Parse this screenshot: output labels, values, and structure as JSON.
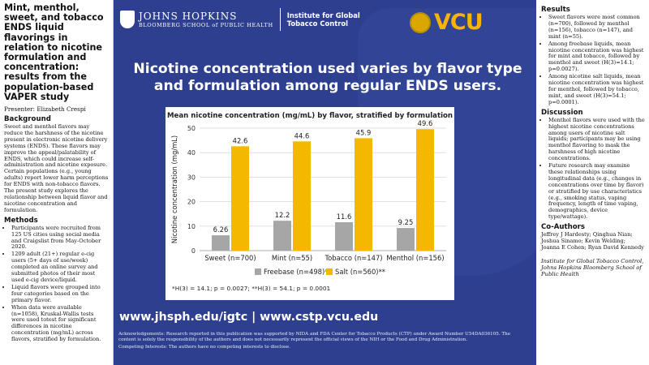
{
  "left": {
    "title": "Mint, menthol, sweet, and tobacco ENDS liquid flavorings in relation to nicotine formulation and concentration: results from the population-based VAPER study",
    "presenter": "Presenter: Elizabeth Crespi",
    "background_heading": "Background",
    "background_text": "Sweet and menthol flavors may reduce the harshness of the nicotine present in electronic nicotine delivery systems (ENDS). These flavors may improve the appeal/palatability of ENDS, which could increase self-administration and nicotine exposure. Certain populations (e.g., young adults) report lower harm perceptions for ENDS with non-tobacco flavors. The present study explores the relationship between liquid flavor and nicotine concentration and formulation.",
    "methods_heading": "Methods",
    "methods_items": [
      "Participants were recruited from 125 US cities using social media and Craigslist from May-October 2020.",
      "1209 adult (21+) regular e-cig users (5+ days of use/week) completed an online survey and submitted photos of their most used e-cig device/liquid.",
      "Liquid flavors were grouped into four categories based on the primary flavor.",
      "When data were available (n=1058), Kruskal-Wallis tests were used totest for significant differences in nicotine concentration (mg/mL) across flavors, stratified by formulation."
    ]
  },
  "header": {
    "jh_name": "JOHNS HOPKINS",
    "jh_sub": "BLOOMBERG SCHOOL of PUBLIC HEALTH",
    "institute_line1": "Institute for Global",
    "institute_line2": "Tobacco Control",
    "vcu": "VCU"
  },
  "headline": "Nicotine concentration used varies by flavor type and formulation among regular ENDS users.",
  "chart_data": {
    "type": "bar",
    "title": "Mean nicotine concentration (mg/mL) by flavor, stratified by formulation",
    "categories": [
      "Sweet (n=700)",
      "Mint (n=55)",
      "Tobacco (n=147)",
      "Menthol (n=156)"
    ],
    "series": [
      {
        "name": "Freebase (n=498)*",
        "values": [
          6.26,
          12.2,
          11.6,
          9.25
        ],
        "labels": [
          "6.26",
          "12.2",
          "11.6",
          "9.25"
        ],
        "color": "#a6a6a6"
      },
      {
        "name": "Salt (n=560)**",
        "values": [
          42.6,
          44.6,
          45.9,
          49.6
        ],
        "labels": [
          "42.6",
          "44.6",
          "45.9",
          "49.6"
        ],
        "color": "#f5b800"
      }
    ],
    "ylabel": "Nicotine concentration (mg/mL)",
    "ylim": [
      0,
      50
    ],
    "yticks": [
      "0",
      "10",
      "20",
      "30",
      "40",
      "50"
    ],
    "grid": true,
    "legend": "bottom"
  },
  "chart_note": "*H(3) = 14.1; p = 0.0027; **H(3) = 54.1; p = 0.0001",
  "urls": "www.jhsph.edu/igtc | www.cstp.vcu.edu",
  "ack": "Acknowledgements: Research reported in this publication was supported by NIDA and FDA Center for Tobacco Products (CTP) under Award Number U54DA036105. The content is solely the responsibility of the authors and does not necessarily represent the official views of the NIH or the Food and Drug Administration.",
  "competing": "Competing Interests: The authors have no competing interests to disclose.",
  "right": {
    "results_heading": "Results",
    "results_items": [
      "Sweet flavors were most common (n=700), followed by menthol (n=156), tobacco (n=147), and mint (n=55).",
      "Among freebase liquids, mean nicotine concentration was highest for mint and tobacco, followed by menthol and sweet (H(3)=14.1; p=0.0027).",
      "Among nicotine salt liquids, mean nicotine concentration was highest for menthol, followed by tobacco, mint, and sweet (H(3)=54.1; p=0.0001)."
    ],
    "discussion_heading": "Discussion",
    "discussion_items": [
      "Menthol flavors were used with the highest nicotine concentrations among users of nicotine salt liquids; participants may be using menthol flavoring to mask the harshness of high nicotine concentrations.",
      "Future research may examine these relationships using longitudinal data (e.g., changes in concentrations over time by flavor) or stratified by use characteristics (e.g., smoking status, vaping frequency, length of time vaping, demographics, device type/wattage)."
    ],
    "coauthors_heading": "Co-Authors",
    "coauthors": "Jeffrey J Hardesty; Qinghua Nian; Joshua Sinamo; Kevin Welding; Joanna E Cohen; Ryan David Kennedy",
    "affiliation": "Institute for Global Tobacco Control, Johns Hopkins Bloomberg School of Public Health"
  }
}
